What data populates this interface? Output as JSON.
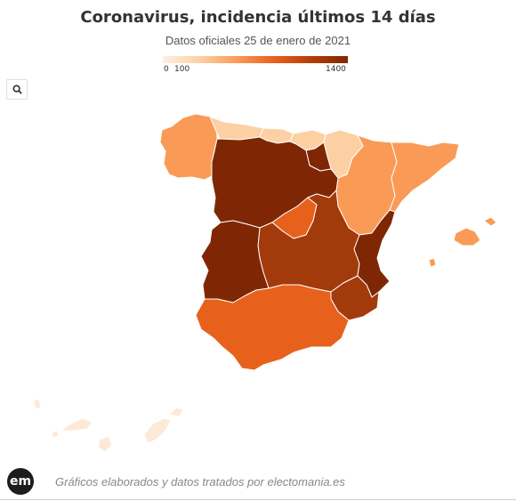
{
  "header": {
    "title": "Coronavirus, incidencia últimos 14 días",
    "subtitle": "Datos oficiales 25 de enero de 2021"
  },
  "legend": {
    "tick_min": "0",
    "tick_low": "100",
    "tick_max": "1400",
    "min": 0,
    "max": 1400,
    "colors": [
      "#fef0e2",
      "#fdd0a4",
      "#f99b56",
      "#e8611c",
      "#b53e0a",
      "#7f2704"
    ]
  },
  "toolbar": {
    "zoom_icon": "search-icon"
  },
  "map": {
    "regions": [
      {
        "name": "Galicia",
        "color": "#f99b56"
      },
      {
        "name": "Asturias",
        "color": "#fdd0a4"
      },
      {
        "name": "Cantabria",
        "color": "#fdd0a4"
      },
      {
        "name": "País Vasco",
        "color": "#fdd0a4"
      },
      {
        "name": "Navarra",
        "color": "#fdd0a4"
      },
      {
        "name": "La Rioja",
        "color": "#7f2704"
      },
      {
        "name": "Aragón",
        "color": "#f99b56"
      },
      {
        "name": "Cataluña",
        "color": "#f99b56"
      },
      {
        "name": "Castilla y León",
        "color": "#7f2704"
      },
      {
        "name": "Madrid",
        "color": "#e8611c"
      },
      {
        "name": "Castilla-La Mancha",
        "color": "#a33a0b"
      },
      {
        "name": "Extremadura",
        "color": "#7f2704"
      },
      {
        "name": "Comunidad Valenciana",
        "color": "#7f2704"
      },
      {
        "name": "Murcia",
        "color": "#a33a0b"
      },
      {
        "name": "Andalucía",
        "color": "#e8611c"
      },
      {
        "name": "Islas Baleares",
        "color": "#f99b56"
      },
      {
        "name": "Canarias",
        "color": "#fde9d7"
      }
    ]
  },
  "footer": {
    "logo_text": "em",
    "credit": "Gráficos elaborados y datos tratados por electomania.es"
  }
}
